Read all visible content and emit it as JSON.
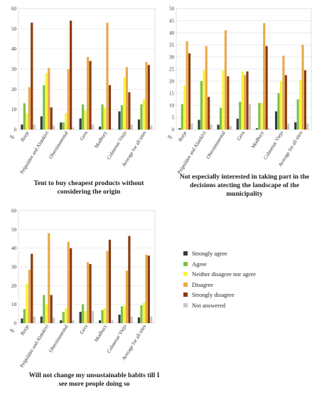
{
  "legend": [
    {
      "label": "Strongly agree",
      "color": "#3a3a3a"
    },
    {
      "label": "Agree",
      "color": "#7dc142"
    },
    {
      "label": "Neither disagree nor agree",
      "color": "#f5f53a"
    },
    {
      "label": "Disagree",
      "color": "#e9a94a"
    },
    {
      "label": "Strongly disagree",
      "color": "#8b3a0c"
    },
    {
      "label": "Not answered",
      "color": "#c8c8c8"
    }
  ],
  "captions": {
    "chart1": "Tent to buy cheapest products without considering the origin",
    "chart2": "Not especially interested in taking part in the decisions atecting the landscape of the municipality",
    "chart3": "Will not change my unsustainable habits till I see more people doing so"
  },
  "chart_data": [
    {
      "type": "bar",
      "title": "Tent to buy cheapest products without considering the origin",
      "ylabel": "%",
      "ylim": [
        0,
        60
      ],
      "yticks": [
        0,
        10,
        20,
        30,
        40,
        50,
        60
      ],
      "categories": [
        "Borje",
        "Peipsiääre and Alatskivi",
        "Obersimmental",
        "Gera",
        "Modbury",
        "Colmenar Viejo",
        "Average for all sites"
      ],
      "series": [
        {
          "name": "Strongly agree",
          "values": [
            2.5,
            6.5,
            3.5,
            5.5,
            1.5,
            9,
            5
          ]
        },
        {
          "name": "Agree",
          "values": [
            13,
            22,
            3.5,
            12.5,
            12.5,
            12,
            12.5
          ]
        },
        {
          "name": "Neither disagree nor agree",
          "values": [
            8,
            28,
            8,
            9.5,
            11,
            26,
            15
          ]
        },
        {
          "name": "Disagree",
          "values": [
            21,
            30.5,
            30,
            36,
            53,
            31,
            33.5
          ]
        },
        {
          "name": "Strongly disagree",
          "values": [
            53,
            11,
            54,
            34,
            22,
            18.5,
            32
          ]
        },
        {
          "name": "Not answered",
          "values": [
            2.5,
            2,
            1,
            2.5,
            0.5,
            2.5,
            2
          ]
        }
      ]
    },
    {
      "type": "bar",
      "title": "Not especially interested in taking part in the decisions atecting the landscape of the municipality",
      "ylabel": "%",
      "ylim": [
        0,
        50
      ],
      "yticks": [
        0,
        5,
        10,
        15,
        20,
        25,
        30,
        35,
        40,
        45,
        50
      ],
      "categories": [
        "Borje",
        "Peipsiääre and Alatskivi",
        "Obersimmental",
        "Gera",
        "Modbury",
        "Colmenar Viejo",
        "Average for all sites"
      ],
      "series": [
        {
          "name": "Strongly agree",
          "values": [
            0.5,
            4,
            2,
            4.5,
            0.5,
            7.5,
            3
          ]
        },
        {
          "name": "Agree",
          "values": [
            10.5,
            20,
            9,
            11.5,
            11,
            15,
            12.5
          ]
        },
        {
          "name": "Neither disagree nor agree",
          "values": [
            18,
            24.5,
            24.5,
            24,
            11,
            20,
            20.5
          ]
        },
        {
          "name": "Disagree",
          "values": [
            36.5,
            34.5,
            41,
            22.5,
            44,
            30.5,
            35
          ]
        },
        {
          "name": "Strongly disagree",
          "values": [
            31.5,
            13.5,
            22,
            24,
            34.5,
            22.5,
            24.5
          ]
        },
        {
          "name": "Not answered",
          "values": [
            2.5,
            2,
            1.5,
            10.5,
            0.5,
            2.5,
            2.5
          ]
        }
      ]
    },
    {
      "type": "bar",
      "title": "Will not change my unsustainable habits till I see more people doing so",
      "ylabel": "%",
      "ylim": [
        0,
        60
      ],
      "yticks": [
        0,
        10,
        20,
        30,
        40,
        50,
        60
      ],
      "categories": [
        "Borje",
        "Peipsiääre and Alatskivi",
        "Obersimmental",
        "Gera",
        "Modbury",
        "Colmenar Viejo",
        "Average for all sites"
      ],
      "series": [
        {
          "name": "Strongly agree",
          "values": [
            2.5,
            3.5,
            1.5,
            6,
            1.5,
            4.5,
            3
          ]
        },
        {
          "name": "Agree",
          "values": [
            7.5,
            15,
            6,
            10,
            7,
            9,
            9.5
          ]
        },
        {
          "name": "Neither disagree nor agree",
          "values": [
            21,
            10,
            8,
            6.5,
            8,
            9.5,
            11
          ]
        },
        {
          "name": "Disagree",
          "values": [
            28.5,
            48,
            43.5,
            32.5,
            38.5,
            28,
            36.5
          ]
        },
        {
          "name": "Strongly disagree",
          "values": [
            37,
            15,
            40,
            31.5,
            44.5,
            46.5,
            36
          ]
        },
        {
          "name": "Not answered",
          "values": [
            3.5,
            3,
            1.5,
            6.5,
            1.5,
            3.5,
            3.5
          ]
        }
      ]
    }
  ]
}
